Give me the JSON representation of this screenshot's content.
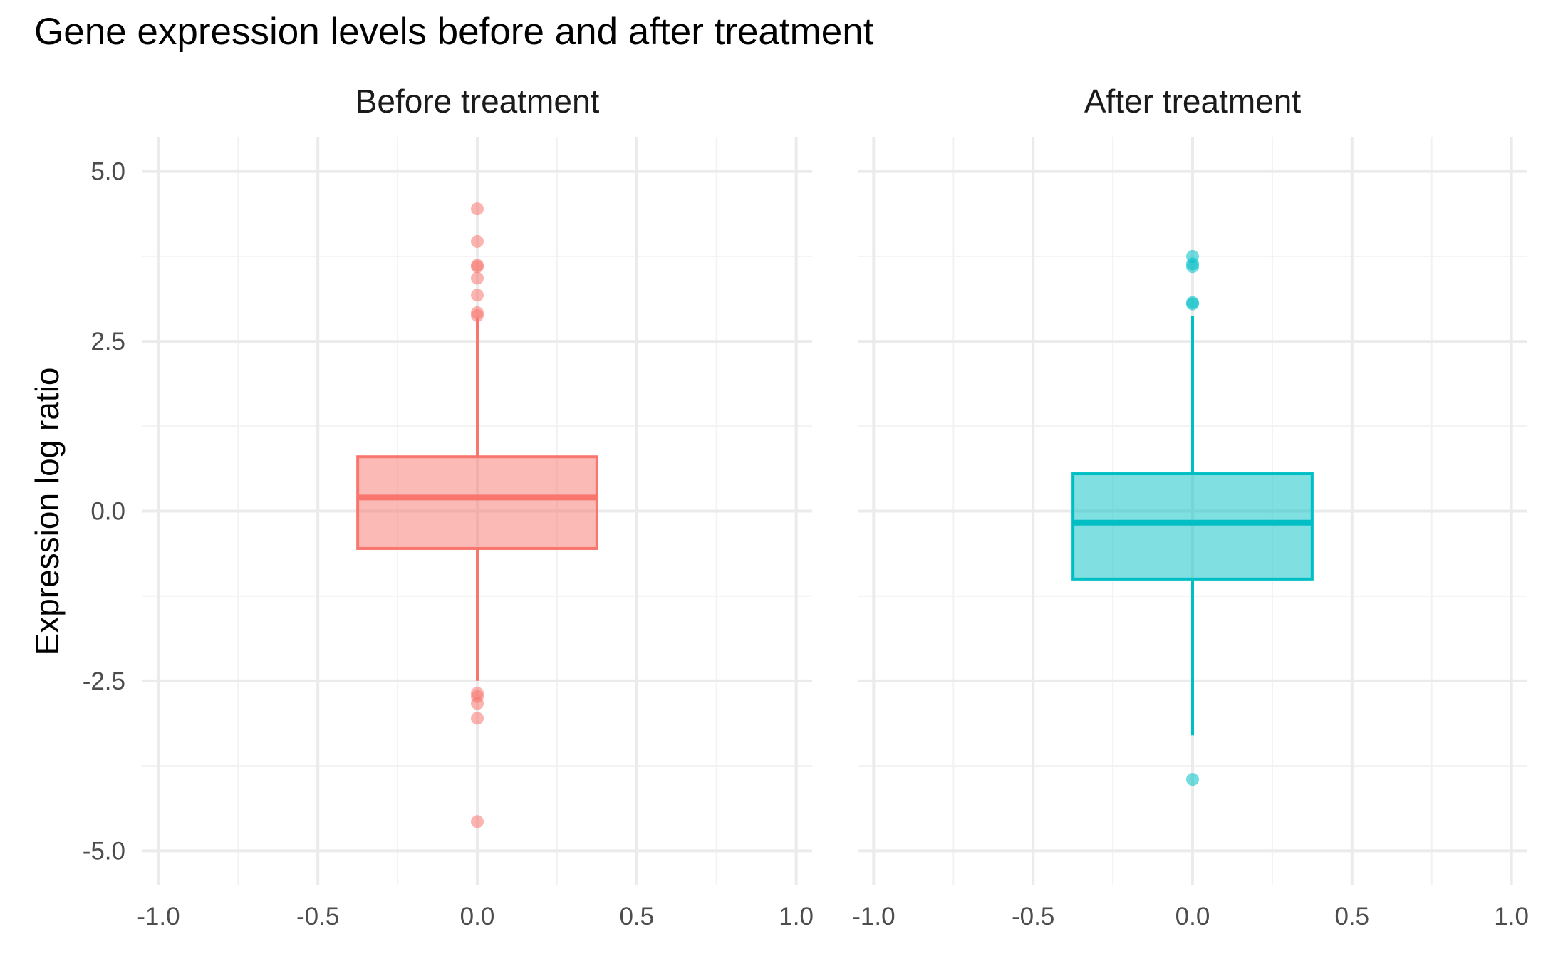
{
  "title": "Gene expression levels before and after treatment",
  "colors": {
    "before": "#F8766D",
    "after": "#00BFC4",
    "grid_major": "#EBEBEB",
    "grid_minor": "#F2F2F2"
  },
  "chart_data": {
    "type": "box",
    "title": "Gene expression levels before and after treatment",
    "xlabel": "",
    "ylabel": "Expression log ratio",
    "ylim": [
      -5.5,
      5.5
    ],
    "xlim": [
      -1.05,
      1.05
    ],
    "yticks": [
      "5.0",
      "2.5",
      "0.0",
      "-2.5",
      "-5.0"
    ],
    "ytick_values": [
      5.0,
      2.5,
      0.0,
      -2.5,
      -5.0
    ],
    "xticks": [
      "-1.0",
      "-0.5",
      "0.0",
      "0.5",
      "1.0"
    ],
    "xtick_values": [
      -1.0,
      -0.5,
      0.0,
      0.5,
      1.0
    ],
    "grid": true,
    "legend": "none",
    "panels": [
      {
        "strip": "Before treatment",
        "color": "#F8766D",
        "box": {
          "q1": -0.55,
          "median": 0.2,
          "q3": 0.8,
          "whisker_low": -2.5,
          "whisker_high": 2.85,
          "x_from": -0.375,
          "x_to": 0.375
        },
        "outliers": [
          4.45,
          3.97,
          3.62,
          3.6,
          3.43,
          3.18,
          2.92,
          2.88,
          -2.68,
          -2.73,
          -2.83,
          -3.05,
          -4.57
        ]
      },
      {
        "strip": "After treatment",
        "color": "#00BFC4",
        "box": {
          "q1": -1.0,
          "median": -0.17,
          "q3": 0.55,
          "whisker_low": -3.3,
          "whisker_high": 2.87,
          "x_from": -0.375,
          "x_to": 0.375
        },
        "outliers": [
          3.75,
          3.64,
          3.6,
          3.07,
          3.05,
          -3.95
        ]
      }
    ]
  }
}
